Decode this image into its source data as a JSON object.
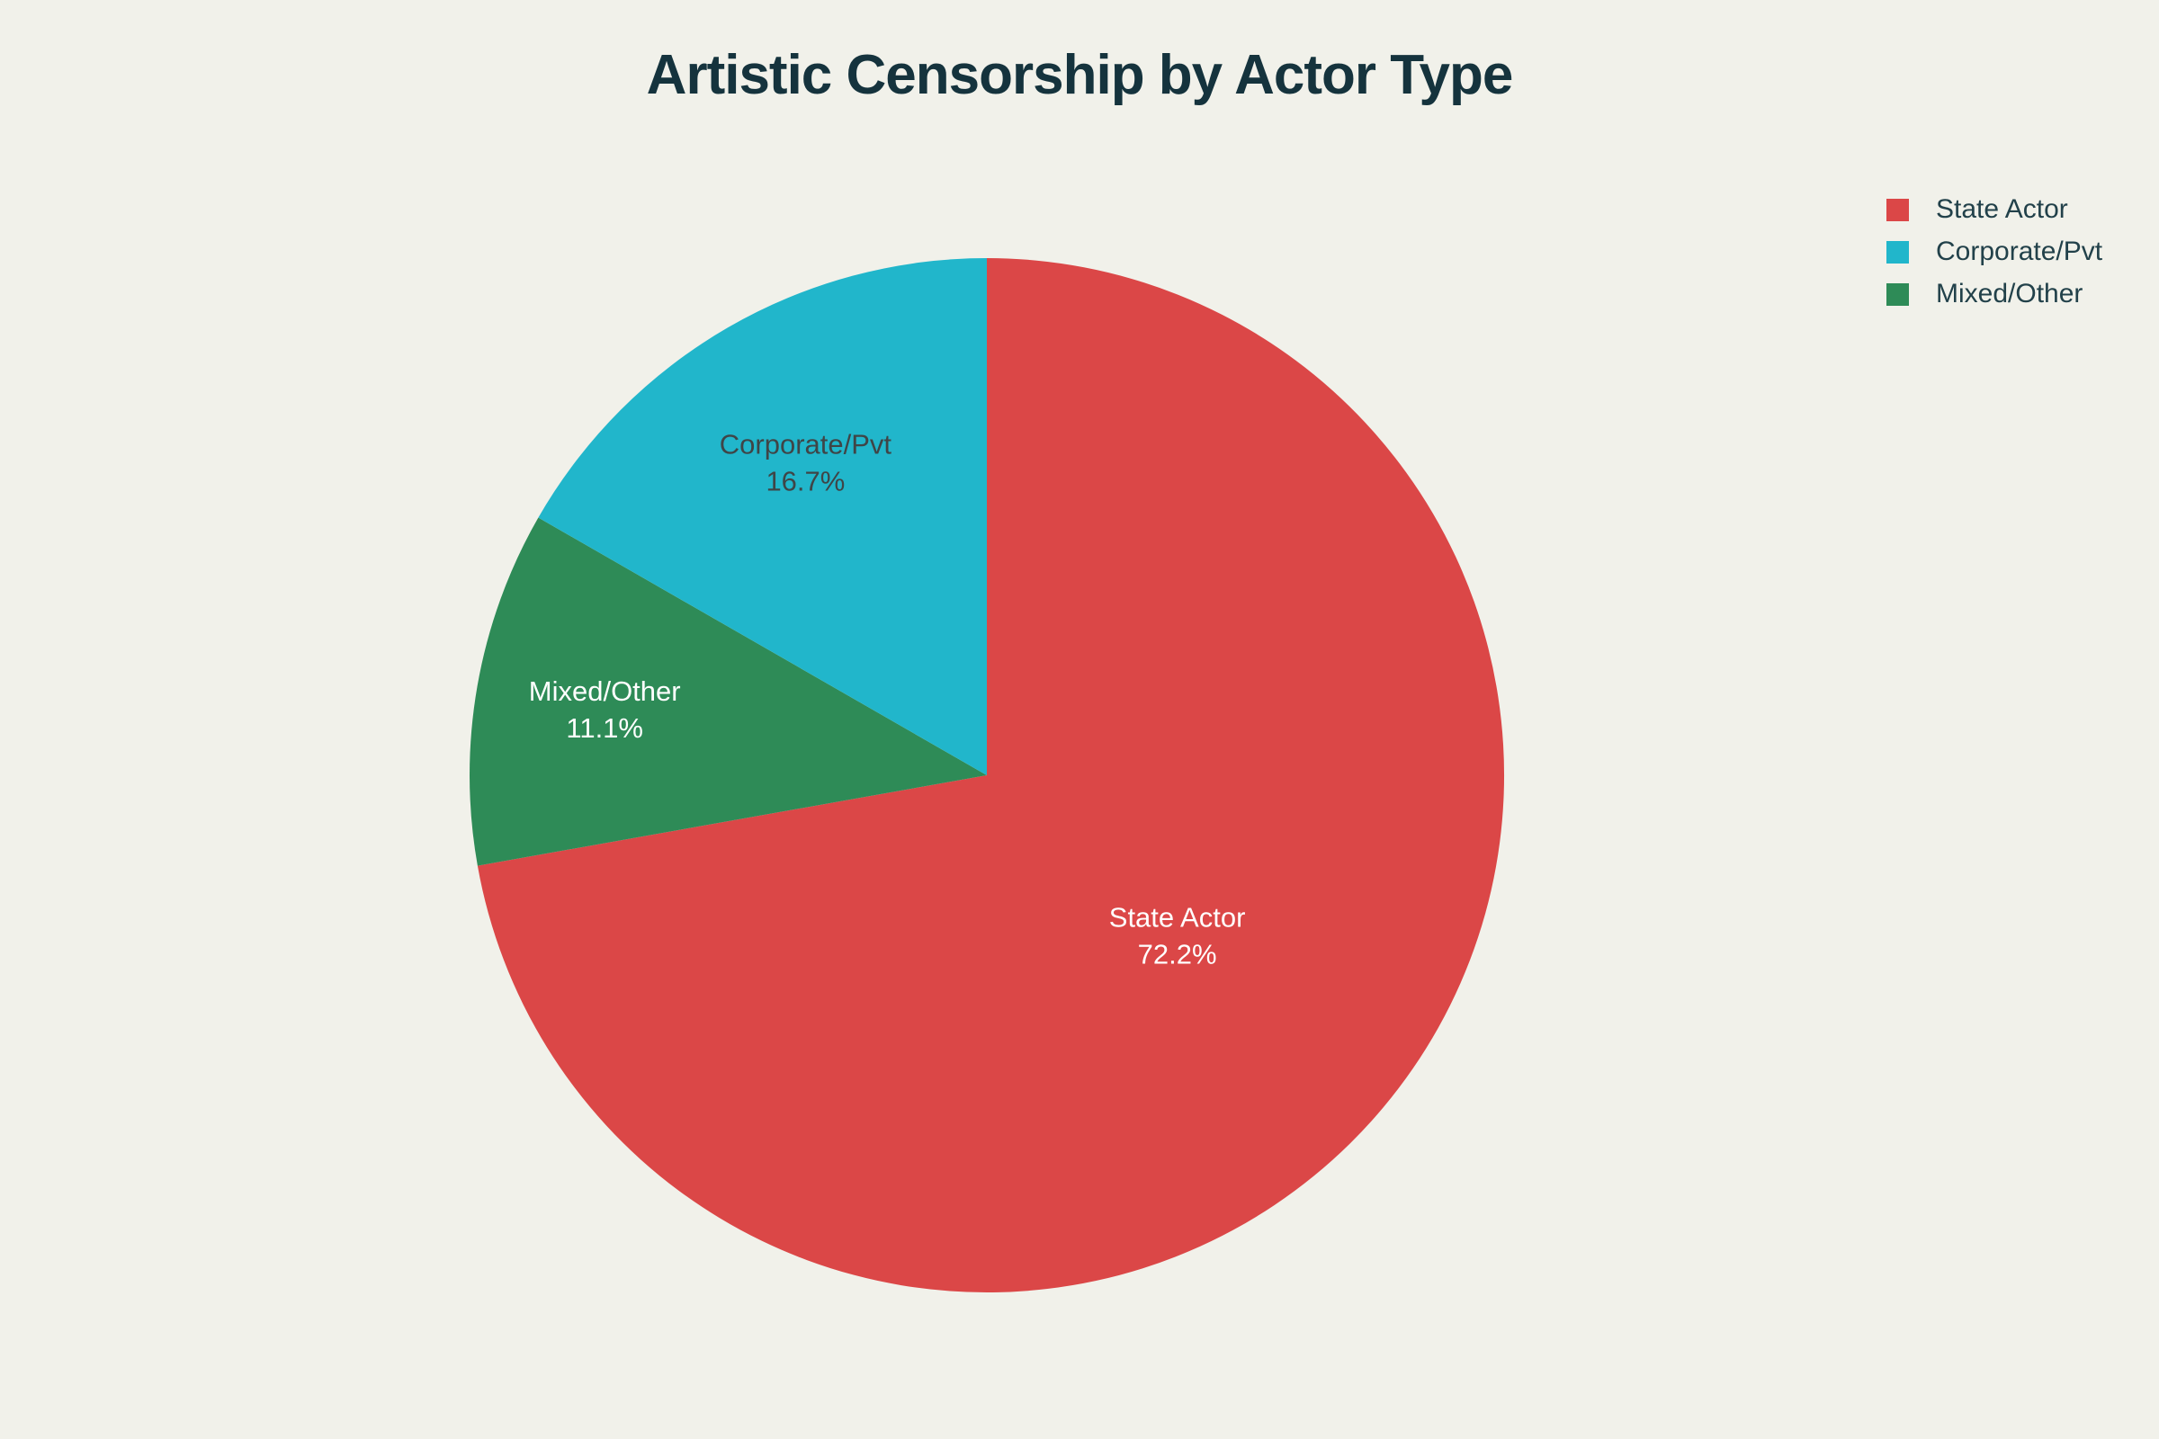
{
  "chart_data": {
    "type": "pie",
    "title": "Artistic Censorship by Actor Type",
    "slices": [
      {
        "label": "State Actor",
        "value": 72.2,
        "pct_label": "72.2%",
        "color": "#db4747",
        "text_color": "#ffffff"
      },
      {
        "label": "Mixed/Other",
        "value": 11.1,
        "pct_label": "11.1%",
        "color": "#2e8b57",
        "text_color": "#ffffff"
      },
      {
        "label": "Corporate/Pvt",
        "value": 16.7,
        "pct_label": "16.7%",
        "color": "#21b6cb",
        "text_color": "#3f4547"
      }
    ],
    "direction": "clockwise",
    "start_angle": "12 o'clock",
    "legend_order": [
      "State Actor",
      "Corporate/Pvt",
      "Mixed/Other"
    ],
    "legend_position": "top-right",
    "colors": {
      "background": "#f1f1ea",
      "title": "#15333d",
      "legend_text": "#22414a"
    }
  }
}
